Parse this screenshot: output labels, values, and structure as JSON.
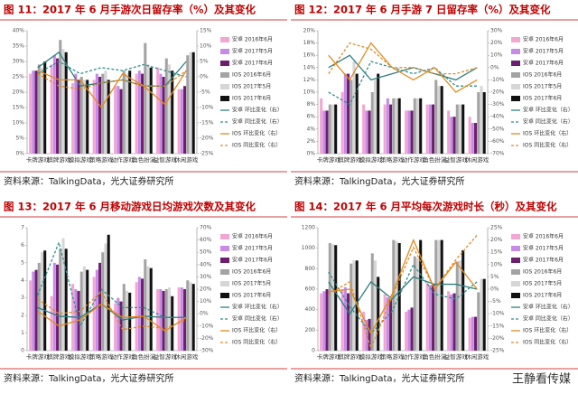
{
  "chart_data": [
    {
      "type": "bar",
      "title": "图 11：2017 年 6 月手游次日留存率（%）及其变化",
      "source": "资料来源：TalkingData，光大证券研究所",
      "categories": [
        "卡牌游戏",
        "棋牌游戏",
        "模拟游戏",
        "策略游戏",
        "动作游戏",
        "角色扮演",
        "益智游戏",
        "休闲游戏"
      ],
      "series": [
        {
          "name": "安卓 2016年6月",
          "color": "#f2a7d3",
          "values": [
            26,
            29,
            23,
            24,
            22,
            26,
            28,
            21
          ]
        },
        {
          "name": "安卓 2017年5月",
          "color": "#c58be6",
          "values": [
            27,
            32,
            26,
            26,
            22,
            27,
            26,
            21
          ]
        },
        {
          "name": "安卓 2017年6月",
          "color": "#6c1f6e",
          "values": [
            27,
            31,
            24,
            25,
            21,
            26,
            25,
            22
          ]
        },
        {
          "name": "IOS 2016年6月",
          "color": "#a3a3a3",
          "values": [
            29,
            37,
            25,
            26,
            27,
            36,
            31,
            32
          ]
        },
        {
          "name": "IOS 2017年5月",
          "color": "#d6d6d6",
          "values": [
            28,
            34,
            24,
            27,
            26,
            29,
            29,
            33
          ]
        },
        {
          "name": "IOS 2017年6月",
          "color": "#111111",
          "values": [
            30,
            33,
            24,
            24,
            27,
            28,
            27,
            33
          ]
        },
        {
          "name": "安卓 环比变化（右）",
          "color": "#2e7f7f",
          "axis": "y2",
          "values": [
            3,
            8,
            -3,
            -2,
            -1,
            -3,
            -3,
            5
          ]
        },
        {
          "name": "安卓 同比变化（右）",
          "color": "#2e8f8f",
          "axis": "y2",
          "dashed": true,
          "values": [
            1,
            5,
            1,
            3,
            2,
            4,
            2,
            0
          ]
        },
        {
          "name": "IOS 环比变化（右）",
          "color": "#e38a21",
          "axis": "y2",
          "values": [
            2,
            -1,
            -1,
            -10,
            1,
            -3,
            -9,
            2
          ]
        },
        {
          "name": "IOS 同比变化（右）",
          "color": "#e38a21",
          "axis": "y2",
          "dashed": true,
          "values": [
            1,
            -3,
            -4,
            -2,
            -1,
            -3,
            -3,
            2
          ]
        }
      ],
      "ylim": [
        0,
        40
      ],
      "yticks": [
        {
          "value": 0,
          "label": "0%"
        },
        {
          "value": 5,
          "label": "5%"
        },
        {
          "value": 10,
          "label": "10%"
        },
        {
          "value": 15,
          "label": "15%"
        },
        {
          "value": 20,
          "label": "20%"
        },
        {
          "value": 25,
          "label": "25%"
        },
        {
          "value": 30,
          "label": "30%"
        },
        {
          "value": 35,
          "label": "35%"
        },
        {
          "value": 40,
          "label": "40%"
        }
      ],
      "y2lim": [
        -25,
        15
      ],
      "y2ticks": [
        {
          "value": -25,
          "label": "-25%"
        },
        {
          "value": -20,
          "label": "-20%"
        },
        {
          "value": -15,
          "label": "-15%"
        },
        {
          "value": -10,
          "label": "-10%"
        },
        {
          "value": -5,
          "label": "-5%"
        },
        {
          "value": 0,
          "label": "0%"
        },
        {
          "value": 5,
          "label": "5%"
        },
        {
          "value": 10,
          "label": "10%"
        },
        {
          "value": 15,
          "label": "15%"
        }
      ]
    },
    {
      "type": "bar",
      "title": "图 12：2017 年 6 月手游 7 日留存率（%）及其变化",
      "source": "资料来源：TalkingData，光大证券研究所",
      "categories": [
        "卡牌游戏",
        "棋牌游戏",
        "模拟游戏",
        "策略游戏",
        "动作游戏",
        "角色扮演",
        "益智游戏",
        "休闲游戏"
      ],
      "series": [
        {
          "name": "安卓 2016年6月",
          "color": "#f2a7d3",
          "values": [
            9,
            10,
            8,
            8,
            7,
            8,
            7,
            6
          ]
        },
        {
          "name": "安卓 2017年5月",
          "color": "#c58be6",
          "values": [
            7,
            13,
            7,
            9,
            7,
            8,
            6,
            5
          ]
        },
        {
          "name": "安卓 2017年6月",
          "color": "#6c1f6e",
          "values": [
            7,
            13,
            7,
            8,
            7,
            8,
            6,
            5
          ]
        },
        {
          "name": "IOS 2016年6月",
          "color": "#a3a3a3",
          "values": [
            8,
            12,
            10,
            9,
            9,
            12,
            8,
            10
          ]
        },
        {
          "name": "IOS 2017年5月",
          "color": "#d6d6d6",
          "values": [
            8,
            15,
            12,
            9,
            9,
            11,
            8,
            11
          ]
        },
        {
          "name": "IOS 2017年6月",
          "color": "#111111",
          "values": [
            8,
            13,
            13,
            9,
            9,
            11,
            8,
            10
          ]
        },
        {
          "name": "安卓 环比变化（右）",
          "color": "#2e7f7f",
          "axis": "y2",
          "values": [
            0,
            10,
            -10,
            -5,
            0,
            -5,
            -10,
            0
          ]
        },
        {
          "name": "安卓 同比变化（右）",
          "color": "#2e8f8f",
          "axis": "y2",
          "dashed": true,
          "values": [
            -20,
            -30,
            5,
            0,
            -5,
            0,
            -15,
            -15
          ]
        },
        {
          "name": "IOS 环比变化（右）",
          "color": "#e38a21",
          "axis": "y2",
          "values": [
            10,
            -10,
            20,
            0,
            -10,
            0,
            -20,
            -10
          ]
        },
        {
          "name": "IOS 同比变化（右）",
          "color": "#e38a21",
          "axis": "y2",
          "dashed": true,
          "values": [
            -5,
            20,
            15,
            0,
            0,
            -5,
            -5,
            0
          ]
        }
      ],
      "ylim": [
        0,
        20
      ],
      "yticks": [
        {
          "value": 0,
          "label": "0%"
        },
        {
          "value": 2,
          "label": "2%"
        },
        {
          "value": 4,
          "label": "4%"
        },
        {
          "value": 6,
          "label": "6%"
        },
        {
          "value": 8,
          "label": "8%"
        },
        {
          "value": 10,
          "label": "10%"
        },
        {
          "value": 12,
          "label": "12%"
        },
        {
          "value": 14,
          "label": "14%"
        },
        {
          "value": 16,
          "label": "16%"
        },
        {
          "value": 18,
          "label": "18%"
        },
        {
          "value": 20,
          "label": "20%"
        }
      ],
      "y2lim": [
        -70,
        30
      ],
      "y2ticks": [
        {
          "value": -70,
          "label": "-70%"
        },
        {
          "value": -60,
          "label": "-60%"
        },
        {
          "value": -50,
          "label": "-50%"
        },
        {
          "value": -40,
          "label": "-40%"
        },
        {
          "value": -30,
          "label": "-30%"
        },
        {
          "value": -20,
          "label": "-20%"
        },
        {
          "value": -10,
          "label": "-10%"
        },
        {
          "value": 0,
          "label": "0%"
        },
        {
          "value": 10,
          "label": "10%"
        },
        {
          "value": 20,
          "label": "20%"
        },
        {
          "value": 30,
          "label": "30%"
        }
      ]
    },
    {
      "type": "bar",
      "title": "图 13：2017 年 6 月移动游戏日均游戏次数及其变化",
      "source": "资料来源：TalkingData，光大证券研究所",
      "categories": [
        "卡牌游戏",
        "棋牌游戏",
        "模拟游戏",
        "策略游戏",
        "动作游戏",
        "角色扮演",
        "益智游戏",
        "休闲游戏"
      ],
      "series": [
        {
          "name": "安卓 2016年6月",
          "color": "#f2a7d3",
          "values": [
            4.0,
            3.1,
            3.8,
            4.2,
            2.7,
            3.9,
            3.5,
            3.6
          ]
        },
        {
          "name": "安卓 2017年5月",
          "color": "#c58be6",
          "values": [
            4.5,
            5.0,
            3.5,
            4.6,
            3.0,
            4.2,
            3.5,
            3.6
          ]
        },
        {
          "name": "安卓 2017年6月",
          "color": "#6c1f6e",
          "values": [
            4.6,
            4.9,
            3.4,
            5.0,
            2.8,
            4.1,
            3.4,
            3.5
          ]
        },
        {
          "name": "IOS 2016年6月",
          "color": "#a3a3a3",
          "values": [
            5.0,
            5.8,
            4.5,
            5.6,
            3.8,
            5.2,
            3.5,
            4.0
          ]
        },
        {
          "name": "IOS 2017年5月",
          "color": "#d6d6d6",
          "values": [
            5.6,
            6.4,
            4.8,
            6.1,
            3.4,
            4.8,
            3.6,
            3.9
          ]
        },
        {
          "name": "IOS 2017年6月",
          "color": "#111111",
          "values": [
            5.7,
            5.8,
            4.6,
            6.6,
            3.3,
            4.7,
            3.1,
            3.8
          ]
        },
        {
          "name": "安卓 环比变化（右）",
          "color": "#2e7f7f",
          "axis": "y2",
          "values": [
            5,
            -2,
            -3,
            8,
            -5,
            -2,
            -3,
            -3
          ]
        },
        {
          "name": "安卓 同比变化（右）",
          "color": "#2e8f8f",
          "axis": "y2",
          "dashed": true,
          "values": [
            15,
            58,
            -10,
            20,
            5,
            5,
            -3,
            -3
          ]
        },
        {
          "name": "IOS 环比变化（右）",
          "color": "#e38a21",
          "axis": "y2",
          "values": [
            2,
            -10,
            -5,
            8,
            -3,
            -2,
            -14,
            -3
          ]
        },
        {
          "name": "IOS 同比变化（右）",
          "color": "#e38a21",
          "axis": "y2",
          "dashed": true,
          "values": [
            12,
            0,
            2,
            18,
            -13,
            -10,
            -12,
            -5
          ]
        }
      ],
      "ylim": [
        0,
        7
      ],
      "yticks": [
        0,
        1,
        2,
        3,
        4,
        5,
        6,
        7
      ],
      "y2lim": [
        -30,
        70
      ],
      "y2ticks": [
        {
          "value": -30,
          "label": "-30%"
        },
        {
          "value": -20,
          "label": "-20%"
        },
        {
          "value": -10,
          "label": "-10%"
        },
        {
          "value": 0,
          "label": "0%"
        },
        {
          "value": 10,
          "label": "10%"
        },
        {
          "value": 20,
          "label": "20%"
        },
        {
          "value": 30,
          "label": "30%"
        },
        {
          "value": 40,
          "label": "40%"
        },
        {
          "value": 50,
          "label": "50%"
        },
        {
          "value": 60,
          "label": "60%"
        },
        {
          "value": 70,
          "label": "70%"
        }
      ]
    },
    {
      "type": "bar",
      "title": "图 14：2017 年 6 月平均每次游戏时长（秒）及其变化",
      "source": "资料来源：TalkingData，光大证券研究所",
      "categories": [
        "卡牌游戏",
        "棋牌游戏",
        "模拟游戏",
        "策略游戏",
        "动作游戏",
        "角色扮演",
        "益智游戏",
        "休闲游戏"
      ],
      "series": [
        {
          "name": "安卓 2016年6月",
          "color": "#f2a7d3",
          "values": [
            560,
            600,
            380,
            550,
            380,
            660,
            580,
            320
          ]
        },
        {
          "name": "安卓 2017年5月",
          "color": "#c58be6",
          "values": [
            580,
            620,
            300,
            520,
            400,
            640,
            550,
            330
          ]
        },
        {
          "name": "安卓 2017年6月",
          "color": "#6c1f6e",
          "values": [
            600,
            560,
            310,
            500,
            420,
            650,
            560,
            330
          ]
        },
        {
          "name": "IOS 2016年6月",
          "color": "#a3a3a3",
          "values": [
            1050,
            850,
            950,
            1080,
            920,
            1080,
            870,
            570
          ]
        },
        {
          "name": "IOS 2017年5月",
          "color": "#d6d6d6",
          "values": [
            1040,
            880,
            880,
            1070,
            900,
            1080,
            880,
            700
          ]
        },
        {
          "name": "IOS 2017年6月",
          "color": "#111111",
          "values": [
            1030,
            880,
            720,
            1050,
            1080,
            1080,
            980,
            700
          ]
        },
        {
          "name": "安卓 环比变化（右）",
          "color": "#2e7f7f",
          "axis": "y2",
          "values": [
            3,
            -10,
            3,
            -4,
            5,
            2,
            2,
            0
          ]
        },
        {
          "name": "安卓 同比变化（右）",
          "color": "#2e8f8f",
          "axis": "y2",
          "dashed": true,
          "values": [
            7,
            -7,
            -18,
            -9,
            10,
            -2,
            -4,
            3
          ]
        },
        {
          "name": "IOS 环比变化（右）",
          "color": "#e38a21",
          "axis": "y2",
          "values": [
            -1,
            0,
            -18,
            -2,
            20,
            0,
            11,
            0
          ]
        },
        {
          "name": "IOS 同比变化（右）",
          "color": "#e38a21",
          "axis": "y2",
          "dashed": true,
          "values": [
            -2,
            3,
            -24,
            -3,
            17,
            0,
            12,
            22
          ]
        }
      ],
      "ylim": [
        0,
        1200
      ],
      "yticks": [
        0,
        200,
        400,
        600,
        800,
        1000,
        1200
      ],
      "y2lim": [
        -25,
        25
      ],
      "y2ticks": [
        {
          "value": -25,
          "label": "-25%"
        },
        {
          "value": -20,
          "label": "-20%"
        },
        {
          "value": -15,
          "label": "-15%"
        },
        {
          "value": -10,
          "label": "-10%"
        },
        {
          "value": -5,
          "label": "-5%"
        },
        {
          "value": 0,
          "label": "0%"
        },
        {
          "value": 5,
          "label": "5%"
        },
        {
          "value": 10,
          "label": "10%"
        },
        {
          "value": 15,
          "label": "15%"
        },
        {
          "value": 20,
          "label": "20%"
        },
        {
          "value": 25,
          "label": "25%"
        }
      ]
    }
  ],
  "watermark": "王静看传媒"
}
